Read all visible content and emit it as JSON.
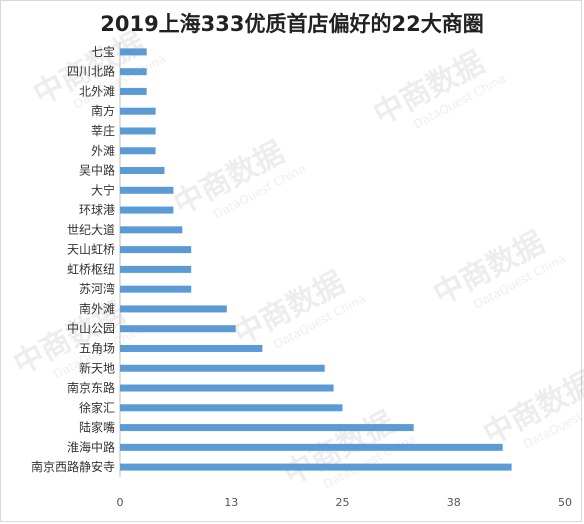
{
  "title": "2019上海333优质首店偏好的22大商圈",
  "watermark": {
    "cn": "中商数据",
    "en": "DataQuest China"
  },
  "chart_data": {
    "type": "bar",
    "orientation": "horizontal",
    "title": "2019上海333优质首店偏好的22大商圈",
    "categories": [
      "七宝",
      "四川北路",
      "北外滩",
      "南方",
      "莘庄",
      "外滩",
      "吴中路",
      "大宁",
      "环球港",
      "世纪大道",
      "天山虹桥",
      "虹桥枢纽",
      "苏河湾",
      "南外滩",
      "中山公园",
      "五角场",
      "新天地",
      "南京东路",
      "徐家汇",
      "陆家嘴",
      "淮海中路",
      "南京西路静安寺"
    ],
    "values": [
      3,
      3,
      3,
      4,
      4,
      4,
      5,
      6,
      6,
      7,
      8,
      8,
      8,
      12,
      13,
      16,
      23,
      24,
      25,
      33,
      43,
      44
    ],
    "xlim": [
      0,
      50
    ],
    "x_ticks": [
      "0",
      "13",
      "25",
      "38",
      "50"
    ],
    "bar_color": "#5b9bd5",
    "grid": false
  }
}
